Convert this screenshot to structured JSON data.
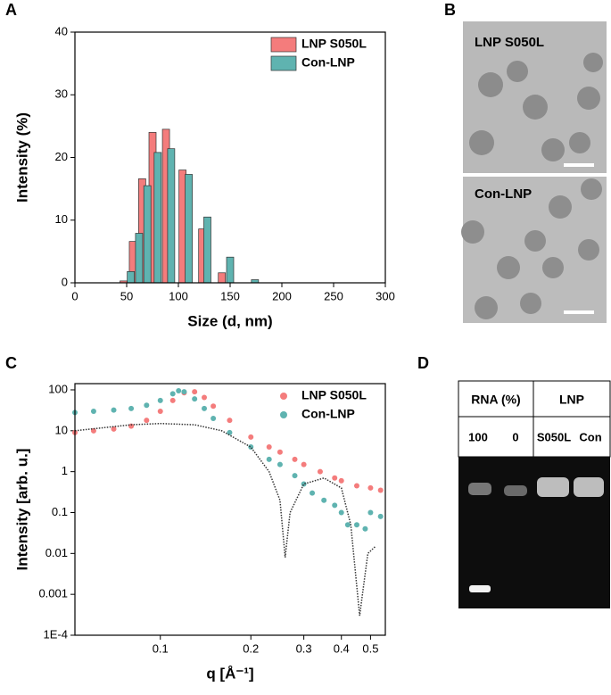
{
  "panel_labels": [
    "A",
    "B",
    "C",
    "D"
  ],
  "chart_data": [
    {
      "type": "bar",
      "xlabel": "Size (d, nm)",
      "ylabel": "Intensity (%)",
      "xlim": [
        0,
        300
      ],
      "xticks": [
        0,
        50,
        100,
        150,
        200,
        250,
        300
      ],
      "ylim": [
        0,
        40
      ],
      "yticks": [
        0,
        10,
        20,
        30,
        40
      ],
      "legend": "top-right",
      "series": [
        {
          "name": "LNP S050L",
          "color": "#f47c7c",
          "x": [
            47,
            56,
            65,
            75,
            88,
            104,
            123,
            142
          ],
          "values": [
            0.3,
            6.6,
            16.6,
            24.0,
            24.5,
            18.0,
            8.6,
            1.6
          ]
        },
        {
          "name": "Con-LNP",
          "color": "#5fb3b0",
          "x": [
            54,
            62,
            70,
            80,
            93,
            110,
            128,
            150,
            174
          ],
          "values": [
            1.8,
            7.9,
            15.5,
            20.8,
            21.4,
            17.3,
            10.5,
            4.1,
            0.5
          ]
        }
      ]
    },
    {
      "type": "scatter",
      "xlabel": "q [Å⁻¹]",
      "ylabel": "Intensity [arb. u.]",
      "xscale": "log",
      "yscale": "log",
      "xlim": [
        0.052,
        0.56
      ],
      "xticks": [
        0.1,
        0.2,
        0.3,
        0.4,
        0.5
      ],
      "ylim": [
        0.0001,
        142
      ],
      "yticks": [
        {
          "value": 0.0001,
          "label": "1E-4"
        },
        0.001,
        0.01,
        0.1,
        1,
        10,
        100
      ],
      "legend": "top-right",
      "series": [
        {
          "name": "LNP S050L",
          "color": "#f47c7c",
          "mode": "markers",
          "x": [
            0.052,
            0.06,
            0.07,
            0.08,
            0.09,
            0.1,
            0.11,
            0.12,
            0.13,
            0.14,
            0.15,
            0.17,
            0.2,
            0.23,
            0.25,
            0.28,
            0.3,
            0.34,
            0.38,
            0.4,
            0.45,
            0.5,
            0.54
          ],
          "values": [
            9,
            10,
            11,
            13,
            18,
            30,
            55,
            85,
            90,
            65,
            40,
            18,
            7,
            4,
            3,
            2,
            1.5,
            1,
            0.7,
            0.6,
            0.45,
            0.4,
            0.35
          ]
        },
        {
          "name": "Con-LNP",
          "color": "#5fb3b0",
          "mode": "markers",
          "x": [
            0.052,
            0.06,
            0.07,
            0.08,
            0.09,
            0.1,
            0.11,
            0.115,
            0.12,
            0.13,
            0.14,
            0.15,
            0.17,
            0.2,
            0.23,
            0.25,
            0.28,
            0.3,
            0.32,
            0.35,
            0.38,
            0.4,
            0.42,
            0.45,
            0.48,
            0.5,
            0.54
          ],
          "values": [
            28,
            30,
            32,
            35,
            42,
            55,
            80,
            95,
            90,
            60,
            35,
            20,
            9,
            4,
            2,
            1.5,
            0.8,
            0.5,
            0.3,
            0.2,
            0.15,
            0.1,
            0.05,
            0.05,
            0.04,
            0.1,
            0.08
          ]
        },
        {
          "color": "#333333",
          "mode": "line",
          "x": [
            0.052,
            0.08,
            0.1,
            0.13,
            0.16,
            0.2,
            0.23,
            0.25,
            0.26,
            0.27,
            0.3,
            0.35,
            0.4,
            0.43,
            0.46,
            0.49,
            0.52
          ],
          "values": [
            10,
            14,
            15,
            14,
            10,
            4,
            1,
            0.2,
            0.008,
            0.1,
            0.5,
            0.7,
            0.4,
            0.05,
            0.0003,
            0.01,
            0.015
          ]
        }
      ]
    }
  ],
  "micrographs": [
    {
      "label": "LNP S050L"
    },
    {
      "label": "Con-LNP"
    }
  ],
  "gel": {
    "header": [
      "RNA (%)",
      "LNP"
    ],
    "lanes": [
      "100",
      "0",
      "S050L",
      "Con"
    ]
  }
}
